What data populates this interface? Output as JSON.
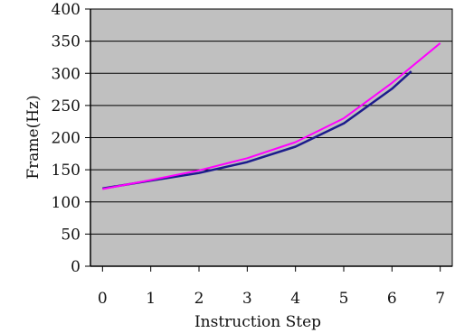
{
  "chart_data": {
    "type": "line",
    "title": "",
    "xlabel": "Instruction Step",
    "ylabel": "Frame(Hz)",
    "xlim": [
      -0.25,
      7.25
    ],
    "ylim": [
      0,
      400
    ],
    "x_ticks": [
      "0",
      "1",
      "2",
      "3",
      "4",
      "5",
      "6",
      "7"
    ],
    "y_ticks": [
      "0",
      "50",
      "100",
      "150",
      "200",
      "250",
      "300",
      "350",
      "400"
    ],
    "grid": "horizontal",
    "plot_background": "#c0c0c0",
    "series": [
      {
        "color": "#1c1c8c",
        "x": [
          0,
          1,
          2,
          3,
          4,
          5,
          6,
          6.4
        ],
        "y": [
          121,
          133,
          145,
          162,
          186,
          222,
          276,
          303
        ]
      },
      {
        "color": "#ff00ff",
        "x": [
          0,
          1,
          2,
          3,
          4,
          5,
          6,
          7
        ],
        "y": [
          120,
          134,
          149,
          168,
          193,
          230,
          285,
          347
        ]
      }
    ]
  }
}
